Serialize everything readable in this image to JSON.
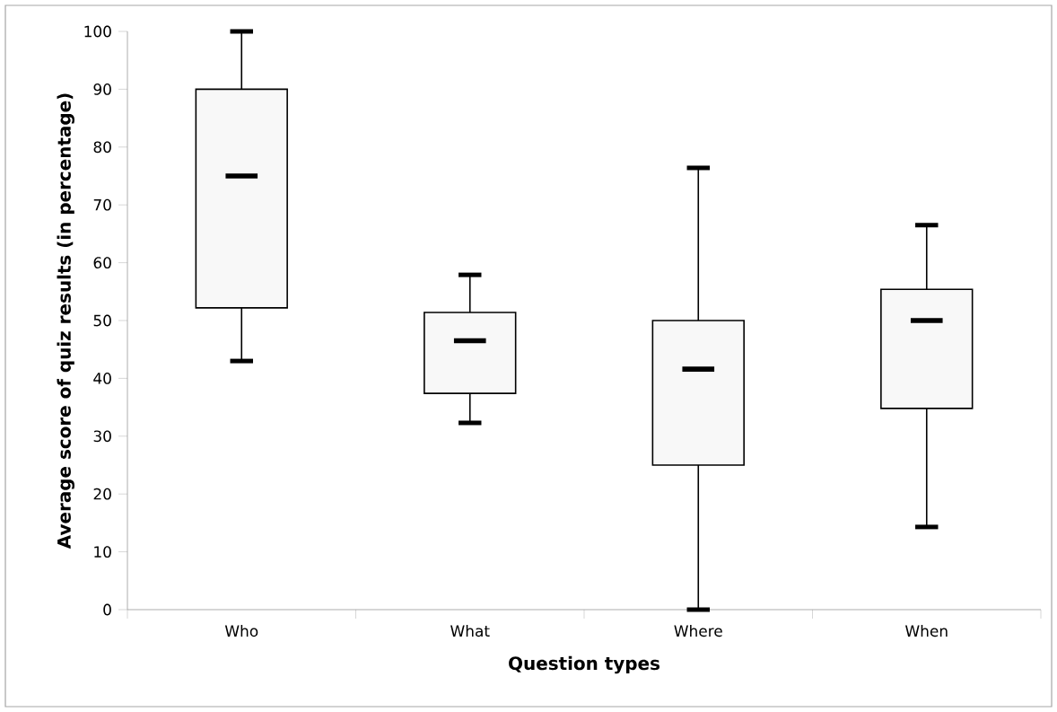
{
  "chart_data": {
    "type": "box",
    "xlabel": "Question types",
    "ylabel": "Average score of quiz results (in percentage)",
    "categories": [
      "Who",
      "What",
      "Where",
      "When"
    ],
    "boxes": [
      {
        "low": 43,
        "q1": 52.2,
        "median": 75,
        "q3": 90,
        "high": 100
      },
      {
        "low": 32.3,
        "q1": 37.4,
        "median": 46.5,
        "q3": 51.4,
        "high": 57.9
      },
      {
        "low": 0,
        "q1": 25,
        "median": 41.6,
        "q3": 50,
        "high": 76.4
      },
      {
        "low": 14.3,
        "q1": 34.8,
        "median": 50,
        "q3": 55.4,
        "high": 66.5
      }
    ],
    "color": "#f8f8f8",
    "ylim": [
      0,
      100
    ],
    "yticks": [
      0,
      10,
      20,
      30,
      40,
      50,
      60,
      70,
      80,
      90,
      100
    ]
  }
}
